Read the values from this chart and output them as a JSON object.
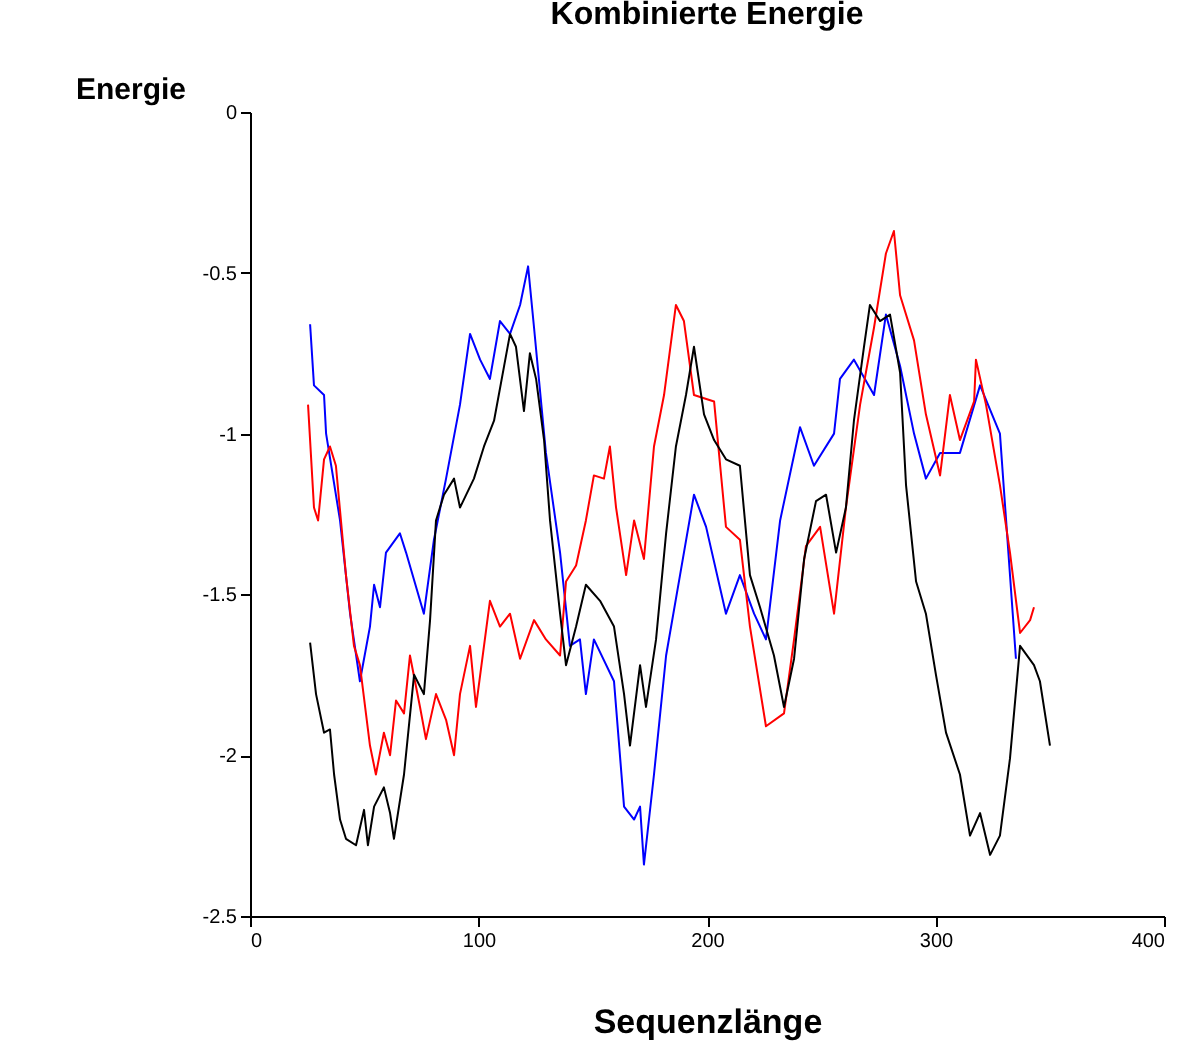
{
  "chart_data": {
    "type": "line",
    "title": "Kombinierte Energie",
    "xlabel": "Sequenzlänge",
    "ylabel": "Energie",
    "xlim": [
      0,
      400
    ],
    "xticks": [
      0,
      100,
      200,
      300,
      400
    ],
    "ylim": [
      -2.5,
      0
    ],
    "yticks": [
      0,
      -0.5,
      -1,
      -1.5,
      -2,
      -2.5
    ],
    "grid": false,
    "series": [
      {
        "color": "#0000ff",
        "x": [
          26.3,
          28.0,
          32.4,
          33.3,
          39.4,
          43.8,
          48.1,
          52.5,
          54.3,
          56.9,
          59.5,
          65.6,
          68.3,
          76.1,
          80.5,
          85.8,
          91.9,
          96.3,
          100.7,
          105.0,
          109.4,
          113.8,
          118.2,
          121.7,
          124.3,
          129.5,
          135.7,
          140.0,
          144.4,
          147.0,
          150.5,
          159.3,
          163.7,
          168.1,
          170.7,
          172.4,
          176.8,
          182.1,
          188.2,
          194.3,
          199.6,
          208.3,
          214.4,
          220.6,
          225.8,
          232.0,
          240.7,
          246.8,
          255.6,
          258.2,
          264.3,
          273.1,
          278.3,
          284.5,
          290.6,
          295.8,
          302.0,
          310.7,
          319.5,
          328.2,
          330.9,
          335.2
        ],
        "values": [
          -0.66,
          -0.85,
          -0.88,
          -1.0,
          -1.27,
          -1.56,
          -1.77,
          -1.6,
          -1.47,
          -1.54,
          -1.37,
          -1.31,
          -1.37,
          -1.56,
          -1.33,
          -1.14,
          -0.91,
          -0.69,
          -0.77,
          -0.83,
          -0.65,
          -0.69,
          -0.6,
          -0.48,
          -0.67,
          -1.06,
          -1.37,
          -1.66,
          -1.64,
          -1.81,
          -1.64,
          -1.77,
          -2.16,
          -2.2,
          -2.16,
          -2.34,
          -2.06,
          -1.69,
          -1.44,
          -1.19,
          -1.29,
          -1.56,
          -1.44,
          -1.56,
          -1.64,
          -1.27,
          -0.98,
          -1.1,
          -1.0,
          -0.83,
          -0.77,
          -0.88,
          -0.63,
          -0.79,
          -1.0,
          -1.14,
          -1.06,
          -1.06,
          -0.85,
          -1.0,
          -1.27,
          -1.7
        ]
      },
      {
        "color": "#ff0000",
        "x": [
          25.4,
          28.0,
          29.8,
          32.4,
          35.0,
          37.6,
          42.0,
          45.5,
          48.1,
          52.5,
          55.1,
          58.6,
          61.3,
          63.9,
          67.4,
          70.0,
          74.4,
          77.0,
          81.4,
          85.8,
          89.3,
          91.9,
          96.3,
          98.9,
          105.0,
          109.4,
          113.8,
          118.2,
          124.3,
          129.5,
          135.7,
          138.3,
          142.7,
          147.0,
          150.5,
          154.9,
          157.5,
          160.2,
          164.6,
          168.1,
          172.4,
          176.8,
          181.2,
          186.4,
          189.9,
          194.3,
          203.1,
          208.3,
          214.4,
          218.8,
          225.8,
          233.7,
          238.1,
          243.3,
          249.5,
          255.6,
          260.8,
          267.0,
          273.1,
          278.3,
          281.8,
          284.5,
          290.6,
          295.8,
          302.0,
          306.3,
          310.7,
          316.9,
          317.7,
          322.1,
          328.2,
          332.6,
          337.0,
          341.4,
          343.1
        ],
        "values": [
          -0.91,
          -1.23,
          -1.27,
          -1.08,
          -1.04,
          -1.1,
          -1.44,
          -1.66,
          -1.72,
          -1.97,
          -2.06,
          -1.93,
          -2.0,
          -1.83,
          -1.87,
          -1.69,
          -1.85,
          -1.95,
          -1.81,
          -1.89,
          -2.0,
          -1.81,
          -1.66,
          -1.85,
          -1.52,
          -1.6,
          -1.56,
          -1.7,
          -1.58,
          -1.64,
          -1.69,
          -1.46,
          -1.41,
          -1.27,
          -1.13,
          -1.14,
          -1.04,
          -1.23,
          -1.44,
          -1.27,
          -1.39,
          -1.04,
          -0.88,
          -0.6,
          -0.65,
          -0.88,
          -0.9,
          -1.29,
          -1.33,
          -1.6,
          -1.91,
          -1.87,
          -1.64,
          -1.35,
          -1.29,
          -1.56,
          -1.23,
          -0.91,
          -0.67,
          -0.44,
          -0.37,
          -0.57,
          -0.71,
          -0.94,
          -1.13,
          -0.88,
          -1.02,
          -0.9,
          -0.77,
          -0.91,
          -1.16,
          -1.37,
          -1.62,
          -1.58,
          -1.54
        ]
      },
      {
        "color": "#000000",
        "x": [
          26.3,
          28.9,
          32.4,
          35.0,
          36.8,
          39.4,
          42.0,
          46.4,
          49.9,
          51.6,
          54.3,
          58.6,
          61.3,
          63.0,
          67.4,
          71.8,
          76.1,
          78.8,
          81.4,
          84.9,
          89.3,
          91.9,
          98.0,
          102.4,
          106.8,
          111.2,
          113.8,
          116.4,
          119.9,
          122.5,
          125.2,
          128.7,
          131.3,
          135.7,
          138.3,
          142.7,
          147.0,
          153.2,
          159.3,
          163.7,
          166.3,
          170.7,
          173.3,
          177.7,
          182.1,
          186.4,
          190.8,
          194.3,
          198.7,
          203.1,
          208.3,
          214.4,
          218.8,
          223.2,
          229.3,
          233.7,
          238.1,
          242.5,
          247.7,
          252.1,
          256.5,
          260.8,
          264.3,
          268.7,
          271.3,
          275.7,
          280.1,
          284.5,
          287.1,
          291.5,
          295.8,
          300.2,
          304.6,
          310.7,
          315.1,
          319.5,
          323.9,
          328.2,
          332.6,
          337.0,
          343.1,
          345.7,
          350.1
        ],
        "values": [
          -1.65,
          -1.81,
          -1.93,
          -1.92,
          -2.06,
          -2.2,
          -2.26,
          -2.28,
          -2.17,
          -2.28,
          -2.16,
          -2.1,
          -2.18,
          -2.26,
          -2.06,
          -1.75,
          -1.81,
          -1.58,
          -1.27,
          -1.19,
          -1.14,
          -1.23,
          -1.14,
          -1.04,
          -0.96,
          -0.79,
          -0.69,
          -0.73,
          -0.93,
          -0.75,
          -0.83,
          -1.02,
          -1.27,
          -1.56,
          -1.72,
          -1.6,
          -1.47,
          -1.52,
          -1.6,
          -1.81,
          -1.97,
          -1.72,
          -1.85,
          -1.64,
          -1.31,
          -1.04,
          -0.88,
          -0.73,
          -0.94,
          -1.02,
          -1.08,
          -1.1,
          -1.44,
          -1.54,
          -1.69,
          -1.85,
          -1.7,
          -1.39,
          -1.21,
          -1.19,
          -1.37,
          -1.23,
          -0.96,
          -0.73,
          -0.6,
          -0.65,
          -0.63,
          -0.81,
          -1.16,
          -1.46,
          -1.56,
          -1.75,
          -1.93,
          -2.06,
          -2.25,
          -2.18,
          -2.31,
          -2.25,
          -2.01,
          -1.66,
          -1.72,
          -1.77,
          -1.97
        ]
      }
    ]
  }
}
